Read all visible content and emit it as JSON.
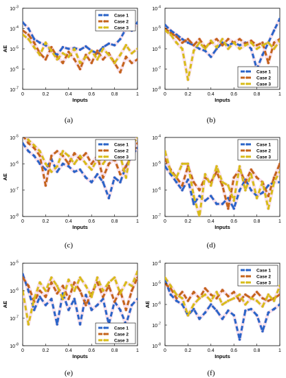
{
  "figure": {
    "colors": {
      "case1": "#2a64c8",
      "case2": "#c4641c",
      "case3": "#d8bc1a",
      "shadow": "#f3c8dc"
    },
    "chart_data": [
      {
        "type": "line",
        "panel_label": "(a)",
        "xlabel": "Inputs",
        "ylabel": "AE",
        "yscale": "log",
        "xlim": [
          0,
          1
        ],
        "ylim": [
          1e-07,
          0.001
        ],
        "xticks": [
          0,
          0.2,
          0.4,
          0.6,
          0.8,
          1
        ],
        "xtick_labels": [
          "0",
          "0.2",
          "0.4",
          "0.6",
          "0.8",
          "1"
        ],
        "yticks": [
          1e-07,
          1e-06,
          1e-05,
          0.0001,
          0.001
        ],
        "ytick_mantissa": [
          "10",
          "10",
          "10",
          "10",
          "10"
        ],
        "ytick_exponents": [
          "-7",
          "-6",
          "-5",
          "-4",
          "-3"
        ],
        "legend_position": "top-right",
        "x": [
          0,
          0.05,
          0.1,
          0.15,
          0.2,
          0.25,
          0.3,
          0.35,
          0.4,
          0.45,
          0.5,
          0.55,
          0.6,
          0.65,
          0.7,
          0.75,
          0.8,
          0.85,
          0.9,
          0.95,
          1
        ],
        "series": [
          {
            "name": "Case 1",
            "values": [
              0.0002,
              0.0001,
              3e-05,
              2e-05,
              1.5e-05,
              8e-06,
              5e-06,
              1.2e-05,
              1e-05,
              1.1e-05,
              9e-06,
              1.3e-05,
              8e-06,
              6e-06,
              1.2e-05,
              1.8e-05,
              1.5e-05,
              3e-05,
              0.0001,
              8e-05,
              0.0002
            ]
          },
          {
            "name": "Case 2",
            "values": [
              8e-05,
              5e-05,
              2e-05,
              6e-06,
              3e-06,
              1.2e-05,
              4e-06,
              2e-06,
              7e-06,
              3e-06,
              1e-06,
              5e-06,
              2e-06,
              8e-06,
              3e-06,
              6e-06,
              2e-06,
              7e-07,
              4e-06,
              2e-06,
              3e-06
            ]
          },
          {
            "name": "Case 3",
            "values": [
              5e-05,
              3e-05,
              1.2e-05,
              5e-06,
              2e-05,
              8e-06,
              3e-06,
              6e-06,
              4e-06,
              1e-05,
              2e-06,
              4e-06,
              8e-06,
              3e-06,
              1e-05,
              5e-06,
              2e-06,
              5e-06,
              1.5e-05,
              6e-06,
              1e-05
            ]
          }
        ]
      },
      {
        "type": "line",
        "panel_label": "(b)",
        "xlabel": "Inputs",
        "ylabel": "",
        "yscale": "log",
        "xlim": [
          0,
          1
        ],
        "ylim": [
          1e-08,
          0.0001
        ],
        "xticks": [
          0,
          0.2,
          0.4,
          0.6,
          0.8,
          1
        ],
        "xtick_labels": [
          "0",
          "0.2",
          "0.4",
          "0.6",
          "0.8",
          "1"
        ],
        "yticks": [
          1e-08,
          1e-07,
          1e-06,
          1e-05,
          0.0001
        ],
        "ytick_mantissa": [
          "10",
          "10",
          "10",
          "10",
          "10"
        ],
        "ytick_exponents": [
          "-8",
          "-7",
          "-6",
          "-5",
          "-4"
        ],
        "legend_position": "bottom-right",
        "x": [
          0,
          0.05,
          0.1,
          0.15,
          0.2,
          0.25,
          0.3,
          0.35,
          0.4,
          0.45,
          0.5,
          0.55,
          0.6,
          0.65,
          0.7,
          0.75,
          0.8,
          0.85,
          0.9,
          0.95,
          1
        ],
        "series": [
          {
            "name": "Case 1",
            "values": [
              1.5e-05,
              8e-06,
              5e-06,
              3e-06,
              2e-06,
              1.5e-06,
              1e-06,
              8e-07,
              4e-07,
              1e-06,
              2e-06,
              1.5e-06,
              2e-06,
              1.5e-06,
              2e-06,
              1e-06,
              1e-07,
              5e-07,
              2e-06,
              8e-06,
              3e-05
            ]
          },
          {
            "name": "Case 2",
            "values": [
              1e-05,
              6e-06,
              4e-06,
              2e-06,
              3e-06,
              1.5e-06,
              3e-06,
              1.2e-06,
              2e-06,
              3e-06,
              1.5e-06,
              3e-06,
              2e-06,
              3e-06,
              1.8e-06,
              2.5e-06,
              1.5e-06,
              2e-06,
              2e-07,
              2e-06,
              3e-06
            ]
          },
          {
            "name": "Case 3",
            "values": [
              8e-06,
              5e-06,
              2e-06,
              1e-06,
              3e-08,
              8e-07,
              2e-06,
              1e-06,
              2.5e-06,
              1.2e-06,
              3e-06,
              1e-06,
              2e-06,
              1e-06,
              1.5e-06,
              2e-06,
              1e-06,
              1.5e-06,
              2e-06,
              1e-06,
              2.5e-06
            ]
          }
        ]
      },
      {
        "type": "line",
        "panel_label": "(c)",
        "xlabel": "Inputs",
        "ylabel": "AE",
        "yscale": "log",
        "xlim": [
          0,
          1
        ],
        "ylim": [
          1e-08,
          1e-05
        ],
        "xticks": [
          0,
          0.2,
          0.4,
          0.6,
          0.8,
          1
        ],
        "xtick_labels": [
          "0",
          "0.2",
          "0.4",
          "0.6",
          "0.8",
          "1"
        ],
        "yticks": [
          1e-08,
          1e-07,
          1e-06,
          1e-05
        ],
        "ytick_mantissa": [
          "10",
          "10",
          "10",
          "10"
        ],
        "ytick_exponents": [
          "-8",
          "-7",
          "-6",
          "-5"
        ],
        "legend_position": "top-right",
        "x": [
          0,
          0.05,
          0.1,
          0.15,
          0.2,
          0.25,
          0.3,
          0.35,
          0.4,
          0.45,
          0.5,
          0.55,
          0.6,
          0.65,
          0.7,
          0.75,
          0.8,
          0.85,
          0.9,
          0.95,
          1
        ],
        "series": [
          {
            "name": "Case 1",
            "values": [
              6e-06,
              3e-06,
              2e-06,
              1e-06,
              6e-07,
              1.5e-06,
              5e-07,
              1e-06,
              8e-07,
              5e-07,
              6e-07,
              3e-07,
              2e-07,
              4e-07,
              2e-07,
              5e-08,
              3e-07,
              2e-07,
              8e-07,
              2e-06,
              4e-06
            ]
          },
          {
            "name": "Case 2",
            "values": [
              1.2e-05,
              6e-06,
              4e-06,
              2e-06,
              1.5e-07,
              2e-06,
              3e-06,
              2e-06,
              1e-06,
              2.5e-06,
              1.5e-06,
              2.5e-06,
              1e-06,
              2e-06,
              3e-07,
              1e-06,
              1.5e-06,
              4e-07,
              8e-07,
              2e-06,
              6e-06
            ]
          },
          {
            "name": "Case 3",
            "values": [
              1.5e-05,
              8e-06,
              5e-06,
              3e-06,
              1e-06,
              5e-07,
              8e-07,
              3e-06,
              2e-06,
              1e-06,
              2e-06,
              1e-06,
              6e-07,
              1.5e-06,
              1e-06,
              2e-06,
              3e-06,
              2e-06,
              3e-07,
              5e-06,
              1e-05
            ]
          }
        ]
      },
      {
        "type": "line",
        "panel_label": "(d)",
        "xlabel": "Inputs",
        "ylabel": "",
        "yscale": "log",
        "xlim": [
          0,
          1
        ],
        "ylim": [
          1e-07,
          0.0001
        ],
        "xticks": [
          0,
          0.2,
          0.4,
          0.6,
          0.8,
          1
        ],
        "xtick_labels": [
          "0",
          "0.2",
          "0.4",
          "0.6",
          "0.8",
          "1"
        ],
        "yticks": [
          1e-07,
          1e-06,
          1e-05,
          0.0001
        ],
        "ytick_mantissa": [
          "10",
          "10",
          "10",
          "10"
        ],
        "ytick_exponents": [
          "-7",
          "-6",
          "-5",
          "-4"
        ],
        "legend_position": "top-right",
        "x": [
          0,
          0.05,
          0.1,
          0.15,
          0.2,
          0.25,
          0.3,
          0.35,
          0.4,
          0.45,
          0.5,
          0.55,
          0.6,
          0.65,
          0.7,
          0.75,
          0.8,
          0.85,
          0.9,
          0.95,
          1
        ],
        "series": [
          {
            "name": "Case 1",
            "values": [
              8e-06,
              4e-06,
              2e-06,
              1e-06,
              2.5e-06,
              3e-07,
              6e-07,
              4e-07,
              6e-07,
              3e-07,
              3e-07,
              5e-07,
              2e-07,
              1e-06,
              2.5e-06,
              1e-06,
              6e-07,
              8e-07,
              1.5e-06,
              2e-06,
              2e-06
            ]
          },
          {
            "name": "Case 2",
            "values": [
              1.5e-05,
              6e-06,
              3e-06,
              1.5e-06,
              8e-06,
              2e-06,
              1e-06,
              3e-06,
              2e-06,
              5e-06,
              1.5e-06,
              2e-07,
              3e-06,
              6e-06,
              2e-06,
              6e-06,
              3e-06,
              2e-06,
              6e-07,
              3e-06,
              1e-05
            ]
          },
          {
            "name": "Case 3",
            "values": [
              3e-05,
              5e-06,
              3e-06,
              1e-05,
              1e-05,
              6e-07,
              1e-07,
              4e-06,
              1.5e-06,
              8e-06,
              2e-06,
              1.5e-06,
              4e-07,
              8e-06,
              1e-06,
              4e-06,
              5e-07,
              2e-06,
              2e-07,
              2e-06,
              5e-06
            ]
          }
        ]
      },
      {
        "type": "line",
        "panel_label": "(e)",
        "xlabel": "Inputs",
        "ylabel": "AE",
        "yscale": "log",
        "xlim": [
          0,
          1
        ],
        "ylim": [
          1e-08,
          1e-05
        ],
        "xticks": [
          0,
          0.2,
          0.4,
          0.6,
          0.8,
          1
        ],
        "xtick_labels": [
          "0",
          "0.2",
          "0.4",
          "0.6",
          "0.8",
          "1"
        ],
        "yticks": [
          1e-08,
          1e-07,
          1e-06,
          1e-05
        ],
        "ytick_mantissa": [
          "10",
          "10",
          "10",
          "10"
        ],
        "ytick_exponents": [
          "-8",
          "-7",
          "-6",
          "-5"
        ],
        "legend_position": "bottom-right",
        "x": [
          0,
          0.05,
          0.1,
          0.15,
          0.2,
          0.25,
          0.3,
          0.35,
          0.4,
          0.45,
          0.5,
          0.55,
          0.6,
          0.65,
          0.7,
          0.75,
          0.8,
          0.85,
          0.9,
          0.95,
          1
        ],
        "series": [
          {
            "name": "Case 1",
            "values": [
              4e-06,
              1e-06,
              2e-07,
              6e-07,
              3e-07,
              5e-07,
              6e-08,
              8e-07,
              2e-07,
              5e-07,
              6e-08,
              7e-07,
              2e-07,
              3e-07,
              5e-07,
              6e-08,
              4e-07,
              2e-07,
              6e-08,
              3e-07,
              5e-07
            ]
          },
          {
            "name": "Case 2",
            "values": [
              3e-06,
              1.5e-06,
              4e-07,
              1e-06,
              6e-07,
              2e-06,
              8e-07,
              1.5e-06,
              5e-07,
              2e-06,
              1e-06,
              3e-07,
              8e-07,
              2e-06,
              6e-07,
              1.5e-06,
              4e-07,
              1e-06,
              2e-07,
              1e-06,
              3e-06
            ]
          },
          {
            "name": "Case 3",
            "values": [
              1e-06,
              6e-08,
              5e-07,
              2e-06,
              1e-06,
              3e-06,
              1.5e-06,
              5e-07,
              2.5e-06,
              1e-06,
              3e-06,
              1.5e-06,
              6e-07,
              3e-06,
              1e-06,
              2e-06,
              3e-06,
              8e-07,
              2e-06,
              1.5e-06,
              5e-06
            ]
          }
        ]
      },
      {
        "type": "line",
        "panel_label": "(f)",
        "xlabel": "Inputs",
        "ylabel": "AE",
        "yscale": "log",
        "xlim": [
          0,
          1
        ],
        "ylim": [
          1e-08,
          0.0001
        ],
        "xticks": [
          0,
          0.2,
          0.4,
          0.6,
          0.8,
          1
        ],
        "xtick_labels": [
          "0",
          "0.2",
          "0.4",
          "0.6",
          "0.8",
          "1"
        ],
        "yticks": [
          1e-08,
          1e-07,
          1e-06,
          1e-05,
          0.0001
        ],
        "ytick_mantissa": [
          "10",
          "10",
          "10",
          "10",
          "10"
        ],
        "ytick_exponents": [
          "-8",
          "-7",
          "-6",
          "-5",
          "-4"
        ],
        "legend_position": "top-right",
        "x": [
          0,
          0.05,
          0.1,
          0.15,
          0.2,
          0.25,
          0.3,
          0.35,
          0.4,
          0.45,
          0.5,
          0.55,
          0.6,
          0.65,
          0.7,
          0.75,
          0.8,
          0.85,
          0.9,
          0.95,
          1
        ],
        "series": [
          {
            "name": "Case 1",
            "values": [
              1.5e-05,
              3e-06,
              1.5e-06,
              1e-06,
              3e-07,
              6e-07,
              2e-07,
              4e-07,
              1e-06,
              5e-07,
              2e-07,
              5e-07,
              3e-07,
              2e-08,
              5e-07,
              6e-07,
              3e-07,
              5e-08,
              4e-07,
              6e-07,
              1e-06
            ]
          },
          {
            "name": "Case 2",
            "values": [
              1e-05,
              6e-06,
              2e-06,
              4e-06,
              1.5e-06,
              4e-06,
              2e-06,
              6e-06,
              3e-06,
              2e-06,
              5e-06,
              2.5e-06,
              4e-06,
              1.5e-06,
              3e-06,
              2e-06,
              4e-06,
              2e-06,
              1.5e-06,
              2e-06,
              3e-06
            ]
          },
          {
            "name": "Case 3",
            "values": [
              2e-05,
              8e-06,
              3e-06,
              2e-06,
              3e-07,
              1e-06,
              2e-06,
              3e-06,
              1.5e-06,
              4e-06,
              1e-06,
              1.5e-06,
              2e-06,
              3e-06,
              1e-06,
              2e-06,
              1.5e-06,
              8e-07,
              3e-06,
              1.5e-06,
              8e-06
            ]
          }
        ]
      }
    ]
  }
}
